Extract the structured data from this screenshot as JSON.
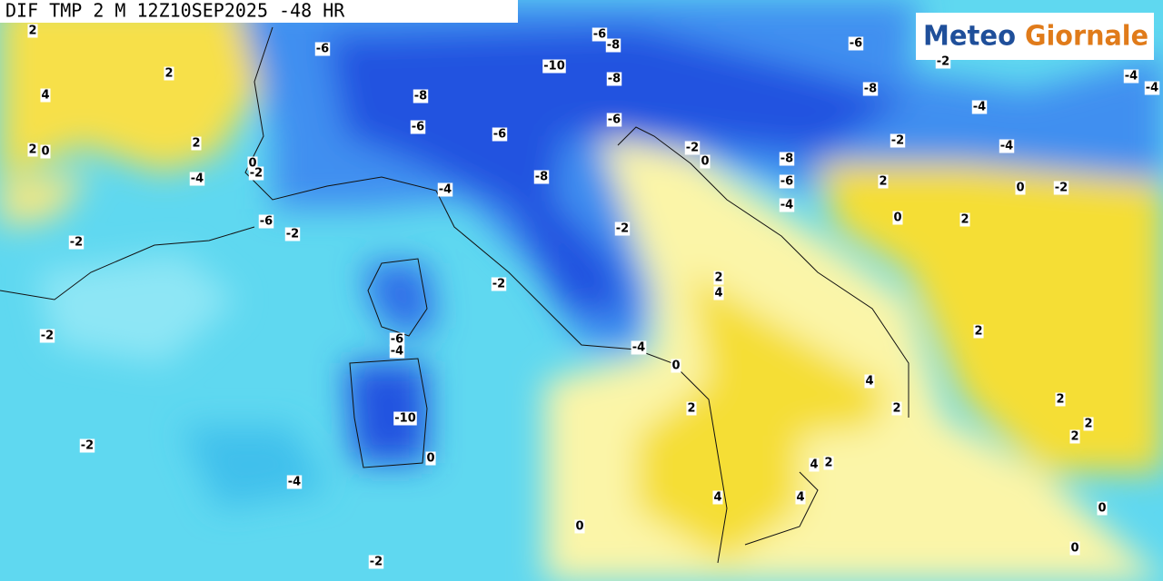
{
  "header": {
    "title": "DIF TMP 2 M 12Z10SEP2025 -48 HR"
  },
  "logo": {
    "word1": "Meteo",
    "word2": "Giornale"
  },
  "contour_labels": [
    "2",
    "-6",
    "-6",
    "-8",
    "-6",
    "-2",
    "2",
    "4",
    "-10",
    "-8",
    "-8",
    "-4",
    "-4",
    "-8",
    "-4",
    "-6",
    "-6",
    "-6",
    "-2",
    "-4",
    "2",
    "2",
    "0",
    "0",
    "-2",
    "-4",
    "-2",
    "0",
    "-8",
    "-6",
    "-4",
    "-8",
    "-4",
    "2",
    "0",
    "-2",
    "-6",
    "-2",
    "0",
    "2",
    "-2",
    "-2",
    "-2",
    "2",
    "4",
    "-2",
    "2",
    "-6",
    "-4",
    "-4",
    "-4",
    "0",
    "4",
    "2",
    "2",
    "-10",
    "2",
    "2",
    "2",
    "-2",
    "0",
    "4",
    "2",
    "-4",
    "4",
    "4",
    "0",
    "0",
    "0",
    "-2"
  ]
}
